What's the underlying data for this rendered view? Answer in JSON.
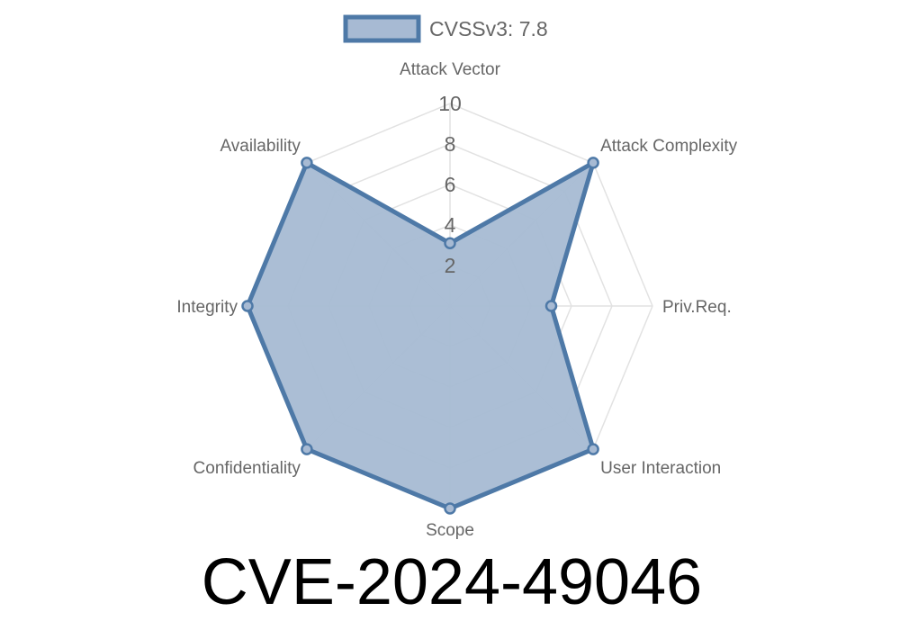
{
  "chart_data": {
    "type": "radar",
    "title": "CVE-2024-49046",
    "legend": {
      "label": "CVSSv3: 7.8",
      "placement": "top"
    },
    "categories": [
      "Attack Vector",
      "Attack Complexity",
      "Priv.Req.",
      "User Interaction",
      "Scope",
      "Confidentiality",
      "Integrity",
      "Availability"
    ],
    "series": [
      {
        "name": "CVSSv3: 7.8",
        "values": [
          3.1,
          10,
          5,
          10,
          10,
          10,
          10,
          10
        ]
      }
    ],
    "rlim": [
      0,
      10
    ],
    "ticks": [
      "2",
      "4",
      "6",
      "8",
      "10"
    ],
    "tick_values": [
      2,
      4,
      6,
      8,
      10
    ],
    "grid": true,
    "colors": {
      "stroke": "#4e79a7",
      "fill": "#a7bad3",
      "grid": "#e2e2e2"
    }
  }
}
